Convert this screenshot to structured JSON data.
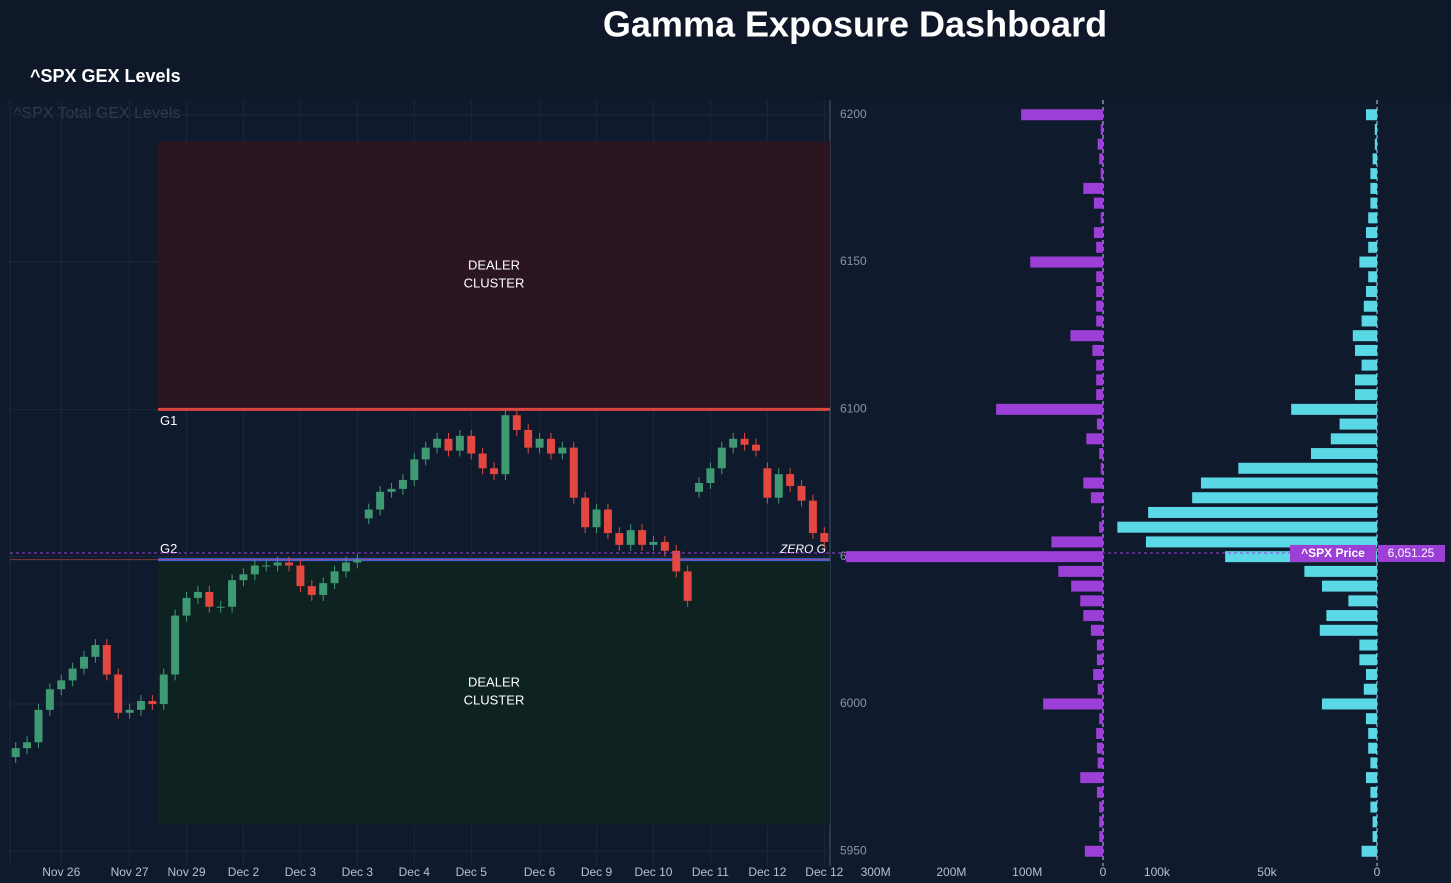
{
  "header": {
    "title": "Gamma Exposure Dashboard",
    "subtitle": "^SPX GEX Levels"
  },
  "chart_data": [
    {
      "type": "candlestick",
      "title": "^SPX Total GEX Levels",
      "open": [
        5982,
        5985,
        5987,
        5998,
        6005,
        6008,
        6012,
        6016,
        6020,
        6010,
        5997,
        5998,
        6001,
        6000,
        6010,
        6030,
        6036,
        6038,
        6033,
        6033,
        6042,
        6044,
        6047,
        6047,
        6048,
        6047,
        6040,
        6037,
        6041,
        6045,
        6048,
        6063,
        6066,
        6072,
        6073,
        6076,
        6083,
        6087,
        6090,
        6086,
        6091,
        6085,
        6080,
        6078,
        6098,
        6093,
        6087,
        6090,
        6085,
        6087,
        6070,
        6060,
        6066,
        6058,
        6054,
        6059,
        6054,
        6055,
        6052,
        6045,
        6072,
        6075,
        6080,
        6087,
        6090,
        6088,
        6080,
        6070,
        6078,
        6074,
        6069,
        6058
      ],
      "high": [
        5987,
        5989,
        6000,
        6007,
        6010,
        6014,
        6018,
        6022,
        6022,
        6012,
        6000,
        6003,
        6003,
        6012,
        6032,
        6038,
        6040,
        6040,
        6035,
        6044,
        6046,
        6049,
        6049,
        6050,
        6050,
        6049,
        6042,
        6043,
        6047,
        6050,
        6051,
        6068,
        6074,
        6075,
        6078,
        6085,
        6089,
        6092,
        6092,
        6093,
        6093,
        6087,
        6082,
        6100,
        6100,
        6095,
        6092,
        6092,
        6089,
        6089,
        6072,
        6068,
        6068,
        6060,
        6061,
        6061,
        6057,
        6057,
        6054,
        6047,
        6077,
        6082,
        6089,
        6092,
        6092,
        6090,
        6082,
        6080,
        6080,
        6076,
        6071,
        6060
      ],
      "low": [
        5980,
        5983,
        5985,
        5996,
        6003,
        6006,
        6010,
        6014,
        6008,
        5995,
        5995,
        5996,
        5998,
        5998,
        6008,
        6028,
        6034,
        6031,
        6031,
        6031,
        6040,
        6042,
        6045,
        6045,
        6045,
        6038,
        6035,
        6035,
        6039,
        6043,
        6046,
        6061,
        6064,
        6070,
        6071,
        6074,
        6081,
        6085,
        6084,
        6084,
        6083,
        6078,
        6076,
        6076,
        6091,
        6085,
        6085,
        6083,
        6083,
        6068,
        6058,
        6058,
        6056,
        6052,
        6052,
        6052,
        6052,
        6050,
        6043,
        6033,
        6070,
        6073,
        6078,
        6085,
        6086,
        6084,
        6068,
        6068,
        6072,
        6067,
        6056,
        6053
      ],
      "close": [
        5985,
        5987,
        5998,
        6005,
        6008,
        6012,
        6016,
        6020,
        6010,
        5997,
        5998,
        6001,
        6000,
        6010,
        6030,
        6036,
        6038,
        6033,
        6033,
        6042,
        6044,
        6047,
        6047,
        6048,
        6047,
        6040,
        6037,
        6041,
        6045,
        6048,
        6049,
        6066,
        6072,
        6073,
        6076,
        6083,
        6087,
        6090,
        6086,
        6091,
        6085,
        6080,
        6078,
        6098,
        6093,
        6087,
        6090,
        6085,
        6087,
        6070,
        6060,
        6066,
        6058,
        6054,
        6059,
        6054,
        6055,
        6052,
        6045,
        6035,
        6075,
        6080,
        6087,
        6090,
        6088,
        6086,
        6070,
        6078,
        6074,
        6069,
        6058,
        6055
      ],
      "up_color": "#3f9a74",
      "down_color": "#e4473f",
      "xticks": [
        {
          "value": 4,
          "label": "Nov 26"
        },
        {
          "value": 10,
          "label": "Nov 27"
        },
        {
          "value": 15,
          "label": "Nov 29"
        },
        {
          "value": 20,
          "label": "Dec 2"
        },
        {
          "value": 25,
          "label": "Dec 3"
        },
        {
          "value": 30,
          "label": "Dec 3"
        },
        {
          "value": 35,
          "label": "Dec 4"
        },
        {
          "value": 40,
          "label": "Dec 5"
        },
        {
          "value": 46,
          "label": "Dec 6"
        },
        {
          "value": 51,
          "label": "Dec 9"
        },
        {
          "value": 56,
          "label": "Dec 10"
        },
        {
          "value": 61,
          "label": "Dec 11"
        },
        {
          "value": 66,
          "label": "Dec 12"
        },
        {
          "value": 71,
          "label": "Dec 12"
        }
      ],
      "ylim": [
        5945,
        6205
      ],
      "yticks": [
        5950,
        6000,
        6050,
        6100,
        6150,
        6200
      ],
      "grid": true,
      "zones": [
        {
          "label": [
            "DEALER",
            "CLUSTER"
          ],
          "from": 13,
          "range": [
            6100,
            6191
          ],
          "color": "#2a1520"
        },
        {
          "label": [
            "DEALER",
            "CLUSTER"
          ],
          "from": 13,
          "range": [
            5959,
            6049
          ],
          "color": "#0f2222"
        }
      ],
      "levels": [
        {
          "label": "G1",
          "value": 6100,
          "from": 13,
          "color": "#d9463f"
        },
        {
          "label": "G2",
          "value": 6049,
          "from": 13,
          "color": "#3f5fe0"
        }
      ],
      "zero_gamma": {
        "label": "ZERO G",
        "value": 6049
      },
      "price": {
        "name": "^SPX Price",
        "value": 6051.25,
        "label": "6,051.25",
        "color": "#9b3fd6"
      }
    },
    {
      "type": "hbar",
      "categories": [
        6200,
        6195,
        6190,
        6185,
        6180,
        6175,
        6170,
        6165,
        6160,
        6155,
        6150,
        6145,
        6140,
        6135,
        6130,
        6125,
        6120,
        6115,
        6110,
        6105,
        6100,
        6095,
        6090,
        6085,
        6080,
        6075,
        6070,
        6065,
        6060,
        6055,
        6050,
        6045,
        6040,
        6035,
        6030,
        6025,
        6020,
        6015,
        6010,
        6005,
        6000,
        5995,
        5990,
        5985,
        5980,
        5975,
        5970,
        5965,
        5960,
        5955,
        5950
      ],
      "values": [
        108,
        3,
        7,
        5,
        3,
        26,
        12,
        3,
        12,
        9,
        96,
        9,
        9,
        9,
        9,
        43,
        14,
        9,
        9,
        9,
        141,
        8,
        22,
        5,
        3,
        26,
        16,
        2,
        5,
        68,
        339,
        59,
        42,
        30,
        26,
        16,
        8,
        8,
        13,
        7,
        79,
        5,
        9,
        8,
        7,
        30,
        8,
        5,
        5,
        5,
        24
      ],
      "color": "#9b3fd6",
      "xlim": [
        0,
        343
      ],
      "xticks": [
        {
          "value": 300,
          "label": "300M"
        },
        {
          "value": 200,
          "label": "200M"
        },
        {
          "value": 100,
          "label": "100M"
        },
        0
      ]
    },
    {
      "type": "hbar",
      "categories": [
        6200,
        6195,
        6190,
        6185,
        6180,
        6175,
        6170,
        6165,
        6160,
        6155,
        6150,
        6145,
        6140,
        6135,
        6130,
        6125,
        6120,
        6115,
        6110,
        6105,
        6100,
        6095,
        6090,
        6085,
        6080,
        6075,
        6070,
        6065,
        6060,
        6055,
        6050,
        6045,
        6040,
        6035,
        6030,
        6025,
        6020,
        6015,
        6010,
        6005,
        6000,
        5995,
        5990,
        5985,
        5980,
        5975,
        5970,
        5965,
        5960,
        5955,
        5950
      ],
      "values": [
        5,
        1,
        1,
        2,
        3,
        3,
        3,
        4,
        5,
        4,
        8,
        4,
        5,
        6,
        7,
        11,
        10,
        7,
        10,
        10,
        39,
        17,
        21,
        30,
        63,
        80,
        84,
        104,
        118,
        105,
        69,
        33,
        25,
        13,
        23,
        26,
        8,
        8,
        5,
        6,
        25,
        5,
        4,
        4,
        3,
        5,
        3,
        3,
        2,
        2,
        7
      ],
      "color": "#5ad8e6",
      "xlim": [
        0,
        123.6
      ],
      "xticks": [
        {
          "value": 100,
          "label": "100k"
        },
        {
          "value": 50,
          "label": "50k"
        },
        0
      ]
    }
  ]
}
